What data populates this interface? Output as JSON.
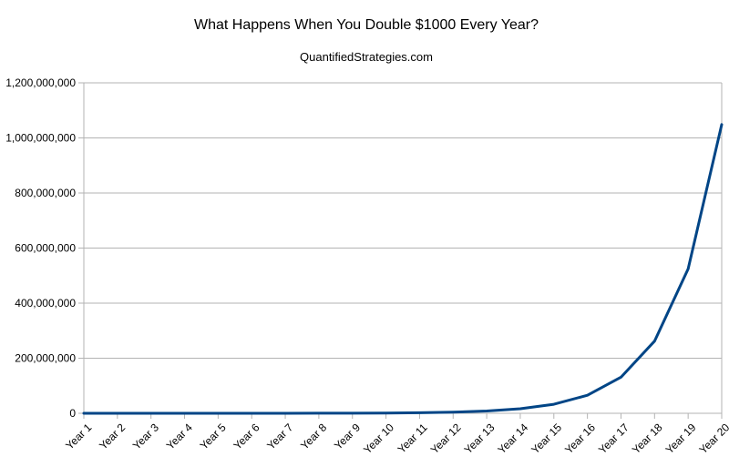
{
  "chart_data": {
    "type": "line",
    "title": "What Happens When You Double $1000 Every Year?",
    "subtitle": "QuantifiedStrategies.com",
    "xlabel": "",
    "ylabel": "",
    "categories": [
      "Year 1",
      "Year 2",
      "Year 3",
      "Year 4",
      "Year 5",
      "Year 6",
      "Year 7",
      "Year 8",
      "Year 9",
      "Year 10",
      "Year 11",
      "Year 12",
      "Year 13",
      "Year 14",
      "Year 15",
      "Year 16",
      "Year 17",
      "Year 18",
      "Year 19",
      "Year 20"
    ],
    "series": [
      {
        "values": [
          2000,
          4000,
          8000,
          16000,
          32000,
          64000,
          128000,
          256000,
          512000,
          1024000,
          2048000,
          4096000,
          8192000,
          16384000,
          32768000,
          65536000,
          131072000,
          262144000,
          524288000,
          1048576000
        ],
        "color": "#004586"
      }
    ],
    "ylim": [
      0,
      1200000000
    ],
    "yticks": [
      0,
      200000000,
      400000000,
      600000000,
      800000000,
      1000000000,
      1200000000
    ],
    "ytick_labels": [
      "0",
      "200,000,000",
      "400,000,000",
      "600,000,000",
      "800,000,000",
      "1,000,000,000",
      "1,200,000,000"
    ],
    "grid": true,
    "legend": "none",
    "colors": {
      "line": "#004586",
      "grid": "#b3b3b3",
      "axis": "#b3b3b3"
    }
  }
}
